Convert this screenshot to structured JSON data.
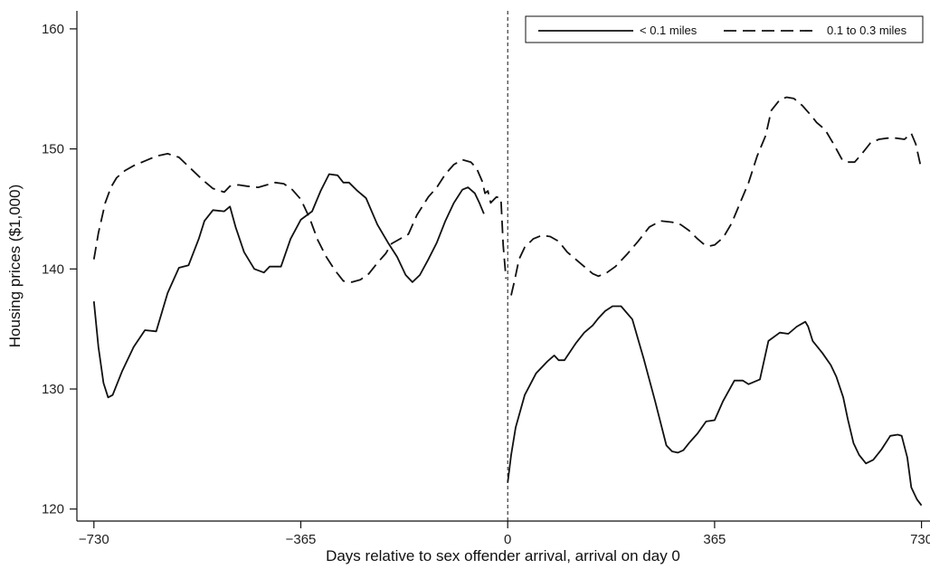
{
  "chart_data": {
    "type": "line",
    "xlabel": "Days relative to sex offender arrival, arrival on day 0",
    "ylabel": "Housing prices ($1,000)",
    "xlim": [
      -760,
      745
    ],
    "ylim": [
      119,
      161.5
    ],
    "x_ticks": [
      -730,
      -365,
      0,
      365,
      730
    ],
    "x_tick_labels": [
      "−730",
      "−365",
      "0",
      "365",
      "730"
    ],
    "y_ticks": [
      120,
      130,
      140,
      150,
      160
    ],
    "y_tick_labels": [
      "120",
      "130",
      "140",
      "150",
      "160"
    ],
    "reference_line_x": 0,
    "grid": false,
    "legend_position": "top-right",
    "series": [
      {
        "name": "< 0.1 miles",
        "style": "solid",
        "color": "#111111",
        "segments": [
          [
            [
              -730,
              137.3
            ],
            [
              -722,
              133.5
            ],
            [
              -713,
              130.5
            ],
            [
              -705,
              129.3
            ],
            [
              -697,
              129.5
            ],
            [
              -680,
              131.5
            ],
            [
              -660,
              133.5
            ],
            [
              -640,
              134.9
            ],
            [
              -620,
              134.8
            ],
            [
              -600,
              138
            ],
            [
              -580,
              140.1
            ],
            [
              -563,
              140.3
            ],
            [
              -545,
              142.5
            ],
            [
              -535,
              144
            ],
            [
              -520,
              144.9
            ],
            [
              -500,
              144.8
            ],
            [
              -490,
              145.2
            ],
            [
              -480,
              143.5
            ],
            [
              -465,
              141.4
            ],
            [
              -447,
              140
            ],
            [
              -430,
              139.7
            ],
            [
              -420,
              140.2
            ],
            [
              -400,
              140.2
            ],
            [
              -383,
              142.5
            ],
            [
              -365,
              144.1
            ],
            [
              -345,
              144.8
            ],
            [
              -330,
              146.5
            ],
            [
              -315,
              147.9
            ],
            [
              -300,
              147.8
            ],
            [
              -290,
              147.2
            ],
            [
              -280,
              147.2
            ],
            [
              -265,
              146.5
            ],
            [
              -250,
              145.9
            ],
            [
              -230,
              143.7
            ],
            [
              -210,
              142.1
            ],
            [
              -195,
              141
            ],
            [
              -180,
              139.5
            ],
            [
              -168,
              138.9
            ],
            [
              -155,
              139.5
            ],
            [
              -140,
              140.8
            ],
            [
              -125,
              142.2
            ],
            [
              -110,
              144
            ],
            [
              -95,
              145.5
            ],
            [
              -80,
              146.6
            ],
            [
              -70,
              146.8
            ],
            [
              -58,
              146.3
            ],
            [
              -50,
              145.5
            ],
            [
              -42,
              144.6
            ]
          ],
          [
            [
              0,
              122.2
            ],
            [
              6,
              124.5
            ],
            [
              14,
              126.8
            ],
            [
              30,
              129.5
            ],
            [
              50,
              131.3
            ],
            [
              70,
              132.3
            ],
            [
              82,
              132.8
            ],
            [
              90,
              132.4
            ],
            [
              100,
              132.4
            ],
            [
              120,
              133.8
            ],
            [
              135,
              134.7
            ],
            [
              150,
              135.3
            ],
            [
              160,
              135.9
            ],
            [
              172,
              136.5
            ],
            [
              185,
              136.9
            ],
            [
              200,
              136.9
            ],
            [
              220,
              135.8
            ],
            [
              240,
              132.5
            ],
            [
              260,
              129
            ],
            [
              280,
              125.3
            ],
            [
              290,
              124.8
            ],
            [
              300,
              124.7
            ],
            [
              310,
              124.9
            ],
            [
              320,
              125.5
            ],
            [
              335,
              126.3
            ],
            [
              350,
              127.3
            ],
            [
              365,
              127.4
            ],
            [
              380,
              129
            ],
            [
              400,
              130.7
            ],
            [
              415,
              130.7
            ],
            [
              425,
              130.4
            ],
            [
              445,
              130.8
            ],
            [
              460,
              134
            ],
            [
              480,
              134.7
            ],
            [
              495,
              134.6
            ],
            [
              510,
              135.2
            ],
            [
              525,
              135.6
            ],
            [
              530,
              135.2
            ],
            [
              538,
              134
            ],
            [
              555,
              133
            ],
            [
              570,
              132
            ],
            [
              580,
              131
            ],
            [
              592,
              129.3
            ],
            [
              600,
              127.5
            ],
            [
              610,
              125.5
            ],
            [
              620,
              124.5
            ],
            [
              632,
              123.8
            ],
            [
              645,
              124.1
            ],
            [
              660,
              125
            ],
            [
              675,
              126.1
            ],
            [
              688,
              126.2
            ],
            [
              695,
              126.1
            ],
            [
              705,
              124.3
            ],
            [
              712,
              121.8
            ],
            [
              722,
              120.8
            ],
            [
              730,
              120.3
            ]
          ]
        ]
      },
      {
        "name": "0.1 to 0.3 miles",
        "style": "dashed",
        "color": "#111111",
        "segments": [
          [
            [
              -730,
              140.8
            ],
            [
              -722,
              143
            ],
            [
              -710,
              145.5
            ],
            [
              -700,
              146.8
            ],
            [
              -690,
              147.6
            ],
            [
              -675,
              148.2
            ],
            [
              -660,
              148.6
            ],
            [
              -640,
              149
            ],
            [
              -620,
              149.4
            ],
            [
              -600,
              149.6
            ],
            [
              -580,
              149.3
            ],
            [
              -560,
              148.4
            ],
            [
              -540,
              147.5
            ],
            [
              -520,
              146.7
            ],
            [
              -500,
              146.4
            ],
            [
              -490,
              146.9
            ],
            [
              -475,
              147
            ],
            [
              -460,
              146.9
            ],
            [
              -440,
              146.8
            ],
            [
              -425,
              147
            ],
            [
              -410,
              147.2
            ],
            [
              -395,
              147.1
            ],
            [
              -380,
              146.6
            ],
            [
              -365,
              145.8
            ],
            [
              -350,
              144.3
            ],
            [
              -335,
              142.4
            ],
            [
              -320,
              141
            ],
            [
              -305,
              139.9
            ],
            [
              -290,
              139
            ],
            [
              -275,
              138.9
            ],
            [
              -260,
              139.1
            ],
            [
              -245,
              139.6
            ],
            [
              -230,
              140.5
            ],
            [
              -215,
              141.3
            ],
            [
              -205,
              142.1
            ],
            [
              -190,
              142.5
            ],
            [
              -175,
              142.9
            ],
            [
              -160,
              144.5
            ],
            [
              -140,
              146
            ],
            [
              -125,
              146.8
            ],
            [
              -110,
              147.9
            ],
            [
              -95,
              148.7
            ],
            [
              -80,
              149.1
            ],
            [
              -65,
              148.9
            ],
            [
              -55,
              148.4
            ],
            [
              -45,
              147.3
            ],
            [
              -40,
              146.3
            ],
            [
              -35,
              146.5
            ],
            [
              -30,
              145.5
            ],
            [
              -20,
              146
            ],
            [
              -12,
              145.9
            ],
            [
              -8,
              142
            ],
            [
              -3,
              139.2
            ]
          ],
          [
            [
              6,
              137.8
            ],
            [
              12,
              139
            ],
            [
              20,
              140.8
            ],
            [
              30,
              141.8
            ],
            [
              45,
              142.5
            ],
            [
              60,
              142.8
            ],
            [
              75,
              142.7
            ],
            [
              90,
              142.3
            ],
            [
              105,
              141.4
            ],
            [
              120,
              140.8
            ],
            [
              135,
              140.2
            ],
            [
              150,
              139.6
            ],
            [
              160,
              139.4
            ],
            [
              175,
              139.7
            ],
            [
              190,
              140.2
            ],
            [
              210,
              141.2
            ],
            [
              230,
              142.3
            ],
            [
              250,
              143.5
            ],
            [
              270,
              144
            ],
            [
              290,
              143.9
            ],
            [
              305,
              143.7
            ],
            [
              320,
              143.2
            ],
            [
              335,
              142.5
            ],
            [
              345,
              142.1
            ],
            [
              355,
              141.9
            ],
            [
              365,
              142
            ],
            [
              380,
              142.6
            ],
            [
              395,
              143.8
            ],
            [
              410,
              145.5
            ],
            [
              425,
              147.2
            ],
            [
              440,
              149.4
            ],
            [
              455,
              151.1
            ],
            [
              465,
              153.2
            ],
            [
              480,
              154.1
            ],
            [
              492,
              154.3
            ],
            [
              505,
              154.2
            ],
            [
              520,
              153.6
            ],
            [
              535,
              152.8
            ],
            [
              545,
              152.2
            ],
            [
              560,
              151.6
            ],
            [
              575,
              150.4
            ],
            [
              590,
              149.1
            ],
            [
              600,
              148.9
            ],
            [
              612,
              148.9
            ],
            [
              625,
              149.6
            ],
            [
              640,
              150.5
            ],
            [
              655,
              150.8
            ],
            [
              670,
              150.9
            ],
            [
              685,
              150.9
            ],
            [
              700,
              150.8
            ],
            [
              712,
              151.3
            ],
            [
              720,
              150.4
            ],
            [
              728,
              148.7
            ],
            [
              730,
              148.3
            ]
          ]
        ]
      }
    ]
  }
}
